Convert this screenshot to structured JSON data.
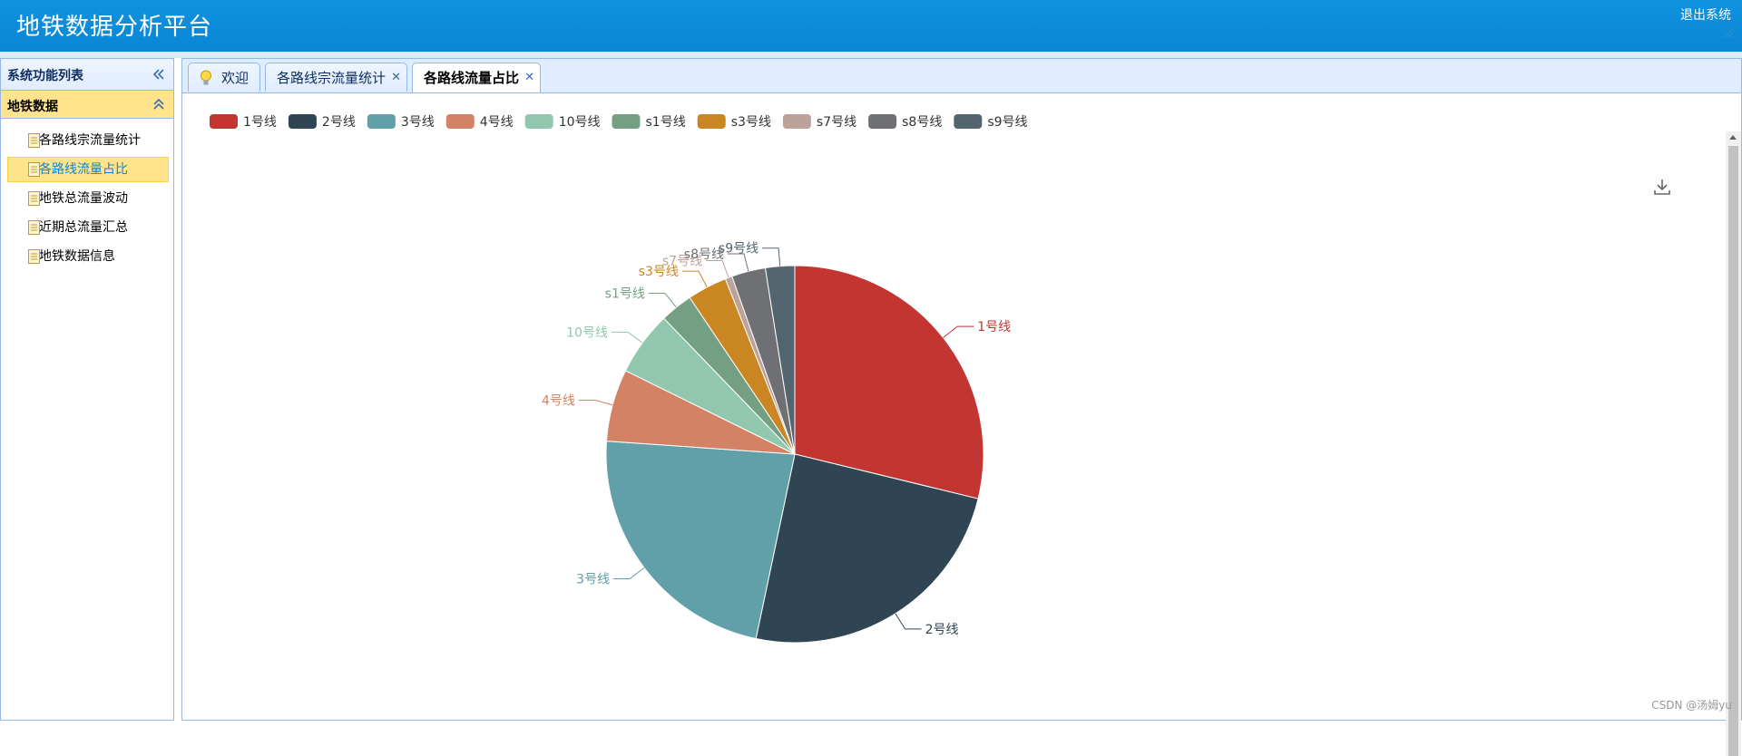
{
  "header": {
    "title": "地铁数据分析平台",
    "logout_label": "退出系统"
  },
  "sidebar": {
    "title": "系统功能列表",
    "group_title": "地铁数据",
    "items": [
      {
        "label": "各路线宗流量统计"
      },
      {
        "label": "各路线流量占比"
      },
      {
        "label": "地铁总流量波动"
      },
      {
        "label": "近期总流量汇总"
      },
      {
        "label": "地铁数据信息"
      }
    ]
  },
  "tabs": [
    {
      "label": "欢迎"
    },
    {
      "label": "各路线宗流量统计"
    },
    {
      "label": "各路线流量占比"
    }
  ],
  "watermark": "CSDN @汤姆yu",
  "chart_data": {
    "type": "pie",
    "categories": [
      "1号线",
      "2号线",
      "3号线",
      "4号线",
      "10号线",
      "s1号线",
      "s3号线",
      "s7号线",
      "s8号线",
      "s9号线"
    ],
    "values": [
      28.8,
      24.5,
      22.8,
      6.2,
      5.5,
      2.8,
      3.4,
      0.6,
      2.9,
      2.5
    ],
    "colors": [
      "#c23531",
      "#2f4554",
      "#61a0a8",
      "#d48265",
      "#91c7ae",
      "#749f83",
      "#ca8622",
      "#bda29a",
      "#6e7074",
      "#546570"
    ],
    "legend_position": "top-left"
  }
}
